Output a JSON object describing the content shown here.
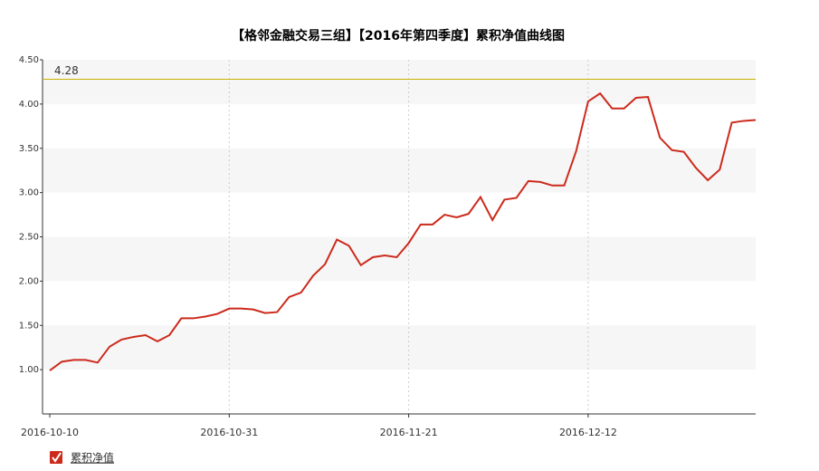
{
  "chart_data": {
    "type": "line",
    "title": "【格邻金融交易三组】【2016年第四季度】累积净值曲线图",
    "categories": [
      "2016-10-10",
      null,
      null,
      null,
      null,
      null,
      null,
      null,
      null,
      null,
      null,
      null,
      null,
      null,
      null,
      "2016-10-31",
      null,
      null,
      null,
      null,
      null,
      null,
      null,
      null,
      null,
      null,
      null,
      null,
      null,
      null,
      "2016-11-21",
      null,
      null,
      null,
      null,
      null,
      null,
      null,
      null,
      null,
      null,
      null,
      null,
      null,
      null,
      "2016-12-12",
      null,
      null,
      null,
      null,
      null,
      null,
      null,
      null,
      null,
      null,
      null,
      null,
      null,
      null
    ],
    "series": [
      {
        "name": "累积净值",
        "color": "#cc2a1c",
        "values": [
          0.99,
          1.09,
          1.11,
          1.11,
          1.08,
          1.26,
          1.34,
          1.37,
          1.39,
          1.32,
          1.39,
          1.58,
          1.58,
          1.6,
          1.63,
          1.69,
          1.69,
          1.68,
          1.64,
          1.65,
          1.82,
          1.87,
          2.06,
          2.19,
          2.47,
          2.4,
          2.18,
          2.27,
          2.29,
          2.27,
          2.43,
          2.64,
          2.64,
          2.75,
          2.72,
          2.76,
          2.95,
          2.69,
          2.92,
          2.94,
          3.13,
          3.12,
          3.08,
          3.08,
          3.47,
          4.03,
          4.12,
          3.95,
          3.95,
          4.07,
          4.08,
          3.62,
          3.48,
          3.46,
          3.28,
          3.14,
          3.26,
          3.79,
          3.81,
          3.82
        ]
      }
    ],
    "ylim": [
      0.5,
      4.5
    ],
    "yticks": [
      {
        "value": 1,
        "label": "1.00"
      },
      {
        "value": 1.5,
        "label": "1.50"
      },
      {
        "value": 2,
        "label": "2.00"
      },
      {
        "value": 2.5,
        "label": "2.50"
      },
      {
        "value": 3,
        "label": "3.00"
      },
      {
        "value": 3.5,
        "label": "3.50"
      },
      {
        "value": 4,
        "label": "4.00"
      },
      {
        "value": 4.5,
        "label": "4.50"
      }
    ],
    "reference_line": 4.28,
    "grid": true
  }
}
